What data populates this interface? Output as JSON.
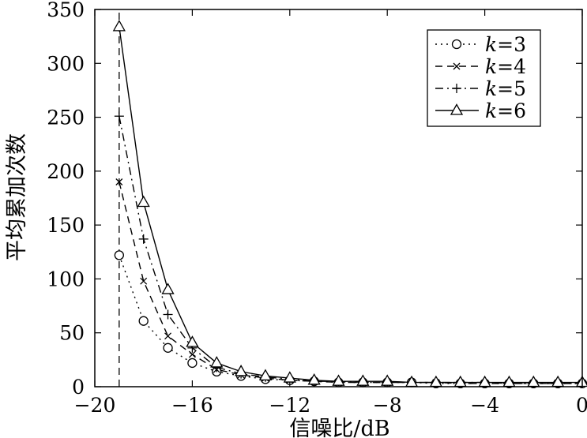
{
  "chart_data": {
    "type": "line",
    "title": "",
    "xlabel": "信噪比/dB",
    "ylabel": "平均累加次数",
    "xlim": [
      -20,
      0
    ],
    "ylim": [
      0,
      350
    ],
    "xticks": [
      -20,
      -16,
      -12,
      -8,
      -4,
      0
    ],
    "xtick_labels": [
      "−20",
      "−16",
      "−12",
      "−8",
      "−4",
      "0"
    ],
    "yticks": [
      0,
      50,
      100,
      150,
      200,
      250,
      300,
      350
    ],
    "ytick_labels": [
      "0",
      "50",
      "100",
      "150",
      "200",
      "250",
      "300",
      "350"
    ],
    "grid": false,
    "legend_position": "top-right",
    "x": [
      -19,
      -18,
      -17,
      -16,
      -15,
      -14,
      -13,
      -12,
      -11,
      -10,
      -9,
      -8,
      -7,
      -6,
      -5,
      -4,
      -3,
      -2,
      -1,
      0
    ],
    "series": [
      {
        "name": "k=3",
        "name_italic": "k",
        "name_rest": "=3",
        "line_style": "dotted",
        "marker": "circle",
        "values": [
          122,
          61,
          36,
          22,
          14,
          10,
          7,
          6,
          5,
          4,
          4,
          4,
          4,
          3,
          3,
          3,
          3,
          3,
          3,
          3
        ]
      },
      {
        "name": "k=4",
        "name_italic": "k",
        "name_rest": "=4",
        "line_style": "dashed",
        "marker": "x",
        "values": [
          190,
          98,
          47,
          30,
          16,
          11,
          8,
          6,
          5,
          4,
          4,
          4,
          4,
          4,
          3,
          3,
          3,
          3,
          3,
          3
        ]
      },
      {
        "name": "k=5",
        "name_italic": "k",
        "name_rest": "=5",
        "line_style": "dashdot",
        "marker": "plus",
        "values": [
          251,
          137,
          67,
          36,
          18,
          12,
          9,
          7,
          5,
          5,
          4,
          4,
          4,
          4,
          4,
          4,
          3,
          3,
          3,
          3
        ]
      },
      {
        "name": "k=6",
        "name_italic": "k",
        "name_rest": "=6",
        "line_style": "solid",
        "marker": "triangle",
        "values": [
          334,
          171,
          90,
          41,
          22,
          14,
          10,
          8,
          6,
          5,
          5,
          5,
          4,
          4,
          4,
          4,
          4,
          4,
          4,
          4
        ]
      }
    ],
    "vertical_line": {
      "x": -19,
      "style": "dashed",
      "y_from": 0,
      "y_to": 350
    }
  }
}
